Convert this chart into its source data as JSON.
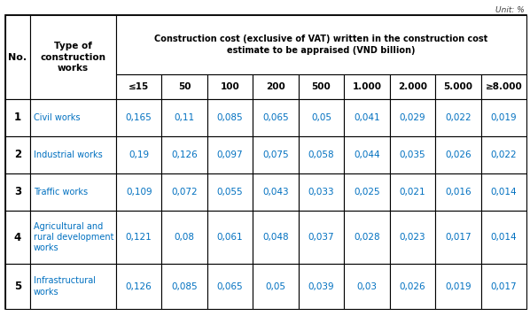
{
  "unit_label": "Unit: %",
  "cost_columns": [
    "≤15",
    "50",
    "100",
    "200",
    "500",
    "1.000",
    "2.000",
    "5.000",
    "≥8.000"
  ],
  "rows": [
    {
      "no": "1",
      "type": "Civil works",
      "type_lines": [
        "Civil works"
      ],
      "values": [
        "0,165",
        "0,11",
        "0,085",
        "0,065",
        "0,05",
        "0,041",
        "0,029",
        "0,022",
        "0,019"
      ]
    },
    {
      "no": "2",
      "type": "Industrial works",
      "type_lines": [
        "Industrial works"
      ],
      "values": [
        "0,19",
        "0,126",
        "0,097",
        "0,075",
        "0,058",
        "0,044",
        "0,035",
        "0,026",
        "0,022"
      ]
    },
    {
      "no": "3",
      "type": "Traffic works",
      "type_lines": [
        "Traffic works"
      ],
      "values": [
        "0,109",
        "0,072",
        "0,055",
        "0,043",
        "0,033",
        "0,025",
        "0,021",
        "0,016",
        "0,014"
      ]
    },
    {
      "no": "4",
      "type": "Agricultural and\nrural development\nworks",
      "type_lines": [
        "Agricultural and",
        "rural development",
        "works"
      ],
      "values": [
        "0,121",
        "0,08",
        "0,061",
        "0,048",
        "0,037",
        "0,028",
        "0,023",
        "0,017",
        "0,014"
      ]
    },
    {
      "no": "5",
      "type": "Infrastructural\nworks",
      "type_lines": [
        "Infrastructural",
        "works"
      ],
      "values": [
        "0,126",
        "0,085",
        "0,065",
        "0,05",
        "0,039",
        "0,03",
        "0,026",
        "0,019",
        "0,017"
      ]
    }
  ],
  "bg_color": "#ffffff",
  "text_color": "#000000",
  "blue_text": "#0070C0",
  "header_merged_text": "Construction cost (exclusive of VAT) written in the construction cost\nestimate to be appraised (VND billion)"
}
